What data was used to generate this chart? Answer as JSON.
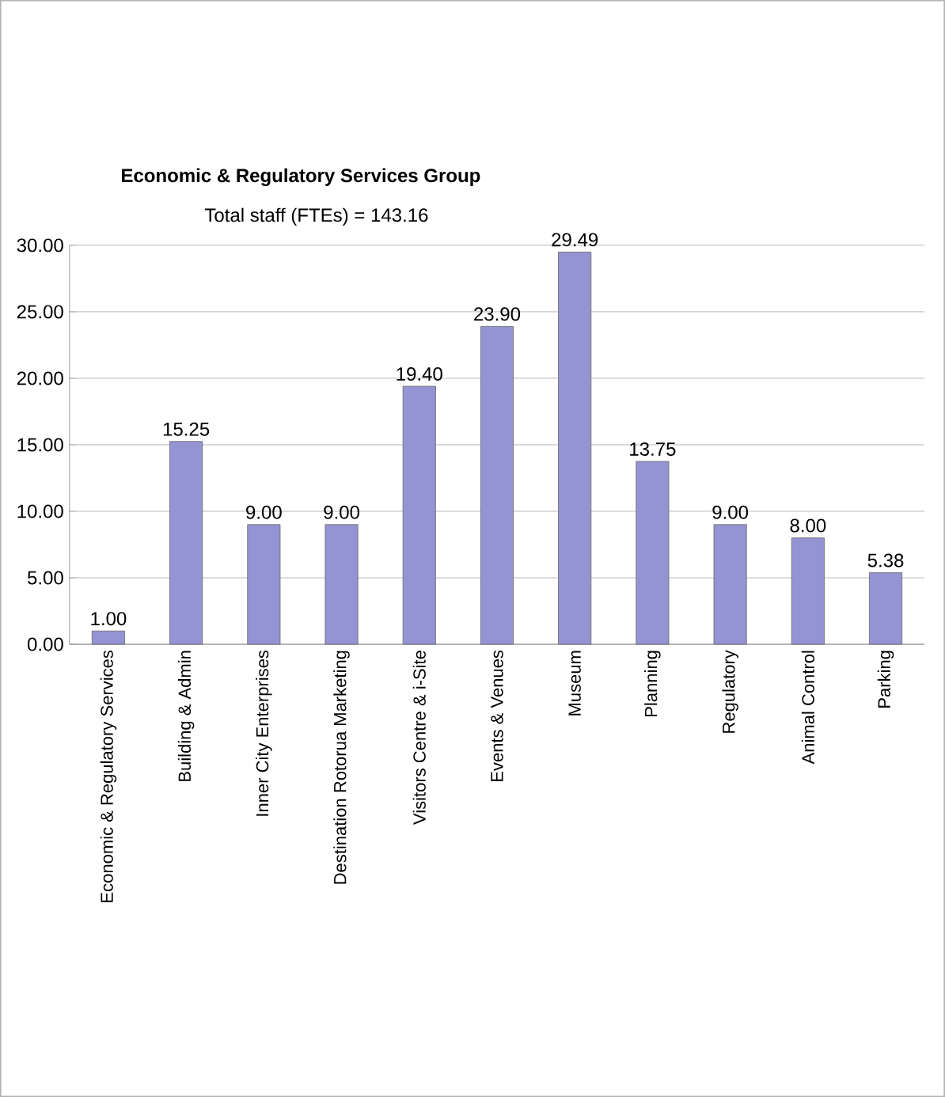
{
  "chart_data": {
    "type": "bar",
    "title": "Economic & Regulatory Services Group",
    "subtitle": "Total staff (FTEs)  = 143.16",
    "categories": [
      "Economic & Regulatory Services",
      "Building & Admin",
      "Inner City Enterprises",
      "Destination Rotorua Marketing",
      "Visitors Centre & i-Site",
      "Events & Venues",
      "Museum",
      "Planning",
      "Regulatory",
      "Animal Control",
      "Parking"
    ],
    "values": [
      1.0,
      15.25,
      9.0,
      9.0,
      19.4,
      23.9,
      29.49,
      13.75,
      9.0,
      8.0,
      5.38
    ],
    "value_labels": [
      "1.00",
      "15.25",
      "9.00",
      "9.00",
      "19.40",
      "23.90",
      "29.49",
      "13.75",
      "9.00",
      "8.00",
      "5.38"
    ],
    "color": "#9494d4",
    "ylim": [
      0,
      30
    ],
    "yticks": [
      {
        "value": 0,
        "label": "0.00"
      },
      {
        "value": 5,
        "label": "5.00"
      },
      {
        "value": 10,
        "label": "10.00"
      },
      {
        "value": 15,
        "label": "15.00"
      },
      {
        "value": 20,
        "label": "20.00"
      },
      {
        "value": 25,
        "label": "25.00"
      },
      {
        "value": 30,
        "label": "30.00"
      }
    ],
    "grid": "y"
  }
}
